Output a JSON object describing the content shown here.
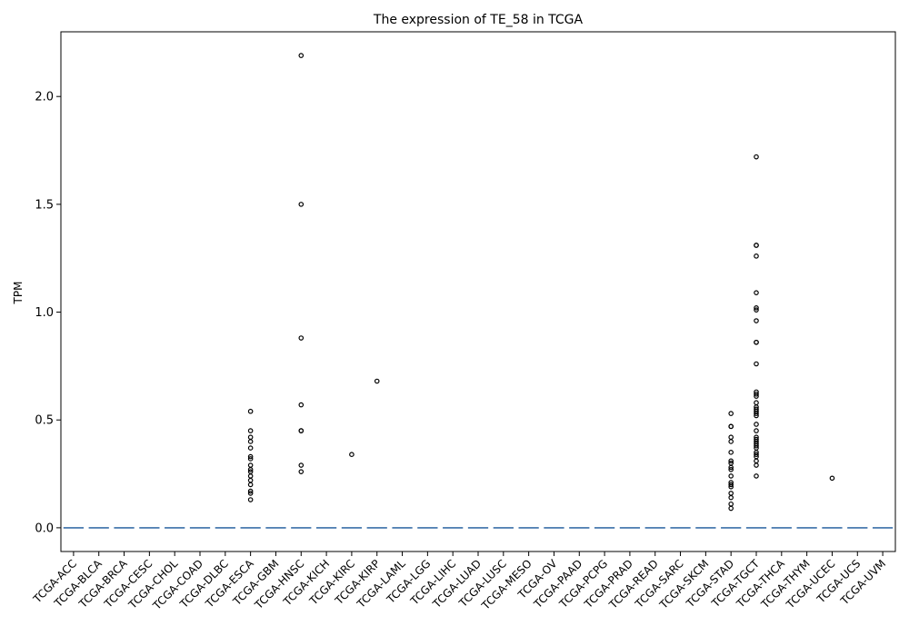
{
  "chart_data": {
    "type": "box",
    "title": "The expression of TE_58 in TCGA",
    "xlabel": "",
    "ylabel": "TPM",
    "ylim": [
      -0.11,
      2.3
    ],
    "yticks": [
      0.0,
      0.5,
      1.0,
      1.5,
      2.0
    ],
    "ytick_labels": [
      "0.0",
      "0.5",
      "1.0",
      "1.5",
      "2.0"
    ],
    "grid": false,
    "categories": [
      "TCGA-ACC",
      "TCGA-BLCA",
      "TCGA-BRCA",
      "TCGA-CESC",
      "TCGA-CHOL",
      "TCGA-COAD",
      "TCGA-DLBC",
      "TCGA-ESCA",
      "TCGA-GBM",
      "TCGA-HNSC",
      "TCGA-KICH",
      "TCGA-KIRC",
      "TCGA-KIRP",
      "TCGA-LAML",
      "TCGA-LGG",
      "TCGA-LIHC",
      "TCGA-LUAD",
      "TCGA-LUSC",
      "TCGA-MESO",
      "TCGA-OV",
      "TCGA-PAAD",
      "TCGA-PCPG",
      "TCGA-PRAD",
      "TCGA-READ",
      "TCGA-SARC",
      "TCGA-SKCM",
      "TCGA-STAD",
      "TCGA-TGCT",
      "TCGA-THCA",
      "TCGA-THYM",
      "TCGA-UCEC",
      "TCGA-UCS",
      "TCGA-UVM"
    ],
    "median": [
      0,
      0,
      0,
      0,
      0,
      0,
      0,
      0,
      0,
      0,
      0,
      0,
      0,
      0,
      0,
      0,
      0,
      0,
      0,
      0,
      0,
      0,
      0,
      0,
      0,
      0,
      0,
      0,
      0,
      0,
      0,
      0,
      0
    ],
    "outliers": {
      "TCGA-ESCA": [
        0.54,
        0.45,
        0.42,
        0.4,
        0.37,
        0.33,
        0.32,
        0.29,
        0.27,
        0.26,
        0.24,
        0.22,
        0.2,
        0.17,
        0.16,
        0.13
      ],
      "TCGA-HNSC": [
        2.19,
        1.5,
        0.88,
        0.57,
        0.45,
        0.45,
        0.29,
        0.26
      ],
      "TCGA-KIRC": [
        0.34
      ],
      "TCGA-KIRP": [
        0.68
      ],
      "TCGA-STAD": [
        0.53,
        0.47,
        0.47,
        0.42,
        0.4,
        0.35,
        0.31,
        0.3,
        0.28,
        0.27,
        0.24,
        0.21,
        0.2,
        0.19,
        0.16,
        0.14,
        0.11,
        0.09
      ],
      "TCGA-TGCT": [
        1.72,
        1.31,
        1.31,
        1.26,
        1.09,
        1.02,
        1.01,
        0.96,
        0.86,
        0.86,
        0.76,
        0.63,
        0.62,
        0.61,
        0.58,
        0.56,
        0.55,
        0.54,
        0.53,
        0.52,
        0.48,
        0.45,
        0.42,
        0.41,
        0.4,
        0.39,
        0.38,
        0.37,
        0.35,
        0.34,
        0.33,
        0.31,
        0.29,
        0.24
      ],
      "TCGA-UCEC": [
        0.23
      ]
    },
    "colors": {
      "box": "#3a6fa8",
      "outlier_edge": "#000000",
      "axis": "#000000"
    }
  }
}
